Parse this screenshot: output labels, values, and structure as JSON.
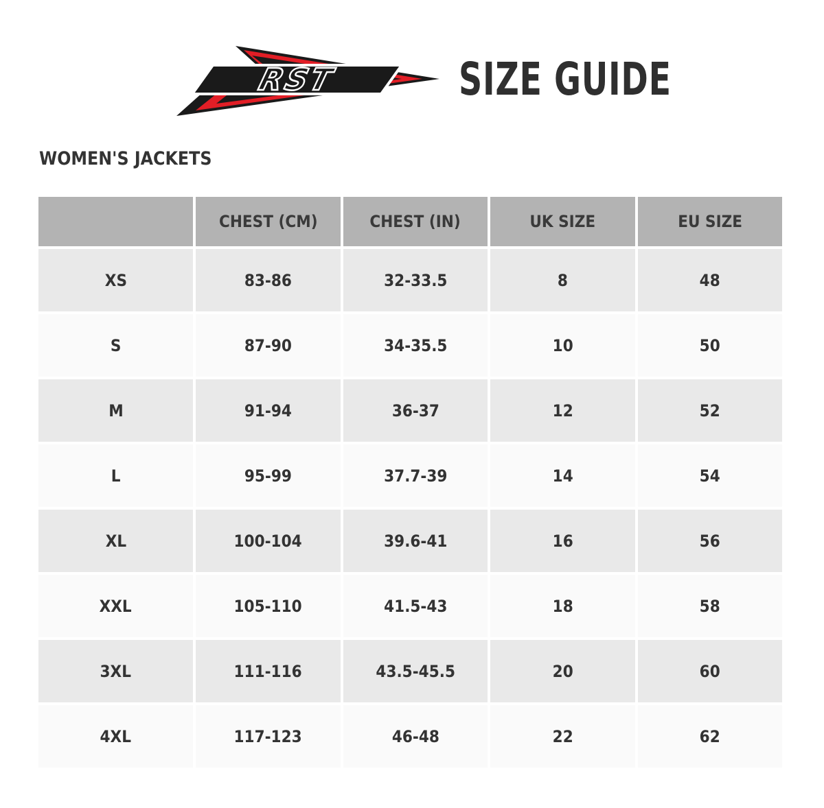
{
  "header": {
    "logo_text": "RST",
    "title": "SIZE GUIDE",
    "logo_colors": {
      "red": "#e21e26",
      "black": "#1a1a1a"
    }
  },
  "section_title": "WOMEN'S JACKETS",
  "table": {
    "columns": [
      "",
      "CHEST (CM)",
      "CHEST (IN)",
      "UK SIZE",
      "EU SIZE"
    ],
    "rows": [
      [
        "XS",
        "83-86",
        "32-33.5",
        "8",
        "48"
      ],
      [
        "S",
        "87-90",
        "34-35.5",
        "10",
        "50"
      ],
      [
        "M",
        "91-94",
        "36-37",
        "12",
        "52"
      ],
      [
        "L",
        "95-99",
        "37.7-39",
        "14",
        "54"
      ],
      [
        "XL",
        "100-104",
        "39.6-41",
        "16",
        "56"
      ],
      [
        "XXL",
        "105-110",
        "41.5-43",
        "18",
        "58"
      ],
      [
        "3XL",
        "111-116",
        "43.5-45.5",
        "20",
        "60"
      ],
      [
        "4XL",
        "117-123",
        "46-48",
        "22",
        "62"
      ]
    ]
  },
  "colors": {
    "header_bg": "#b3b3b3",
    "row_odd": "#e9e9e9",
    "row_even": "#fafafa",
    "text": "#333333"
  }
}
